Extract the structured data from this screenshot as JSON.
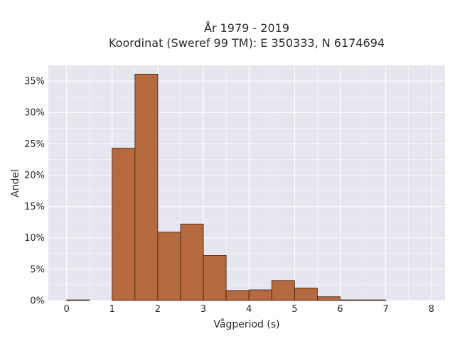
{
  "chart_data": {
    "type": "bar",
    "title_line1": "År 1979 - 2019",
    "title_line2": "Koordinat (Sweref 99 TM): E 350333, N 6174694",
    "xlabel": "Vågperiod (s)",
    "ylabel": "Andel",
    "bin_width": 0.5,
    "bins": [
      {
        "start": 0.0,
        "value": 0.1
      },
      {
        "start": 0.5,
        "value": 0.0
      },
      {
        "start": 1.0,
        "value": 24.3
      },
      {
        "start": 1.5,
        "value": 36.1
      },
      {
        "start": 2.0,
        "value": 10.9
      },
      {
        "start": 2.5,
        "value": 12.2
      },
      {
        "start": 3.0,
        "value": 7.2
      },
      {
        "start": 3.5,
        "value": 1.6
      },
      {
        "start": 4.0,
        "value": 1.7
      },
      {
        "start": 4.5,
        "value": 3.2
      },
      {
        "start": 5.0,
        "value": 2.0
      },
      {
        "start": 5.5,
        "value": 0.6
      },
      {
        "start": 6.0,
        "value": 0.1
      },
      {
        "start": 6.5,
        "value": 0.1
      }
    ],
    "xlim": [
      -0.4,
      8.3
    ],
    "ylim": [
      0,
      37.5
    ],
    "xticks": [
      0,
      1,
      2,
      3,
      4,
      5,
      6,
      7,
      8
    ],
    "yticks": [
      0,
      5,
      10,
      15,
      20,
      25,
      30,
      35
    ],
    "ytick_labels": [
      "0%",
      "5%",
      "10%",
      "15%",
      "20%",
      "25%",
      "30%",
      "35%"
    ],
    "grid": true,
    "colors": {
      "bar_fill": "#b5693f",
      "bar_edge": "#3a2216",
      "plot_bg": "#e6e6ef",
      "grid": "#ffffff"
    }
  }
}
